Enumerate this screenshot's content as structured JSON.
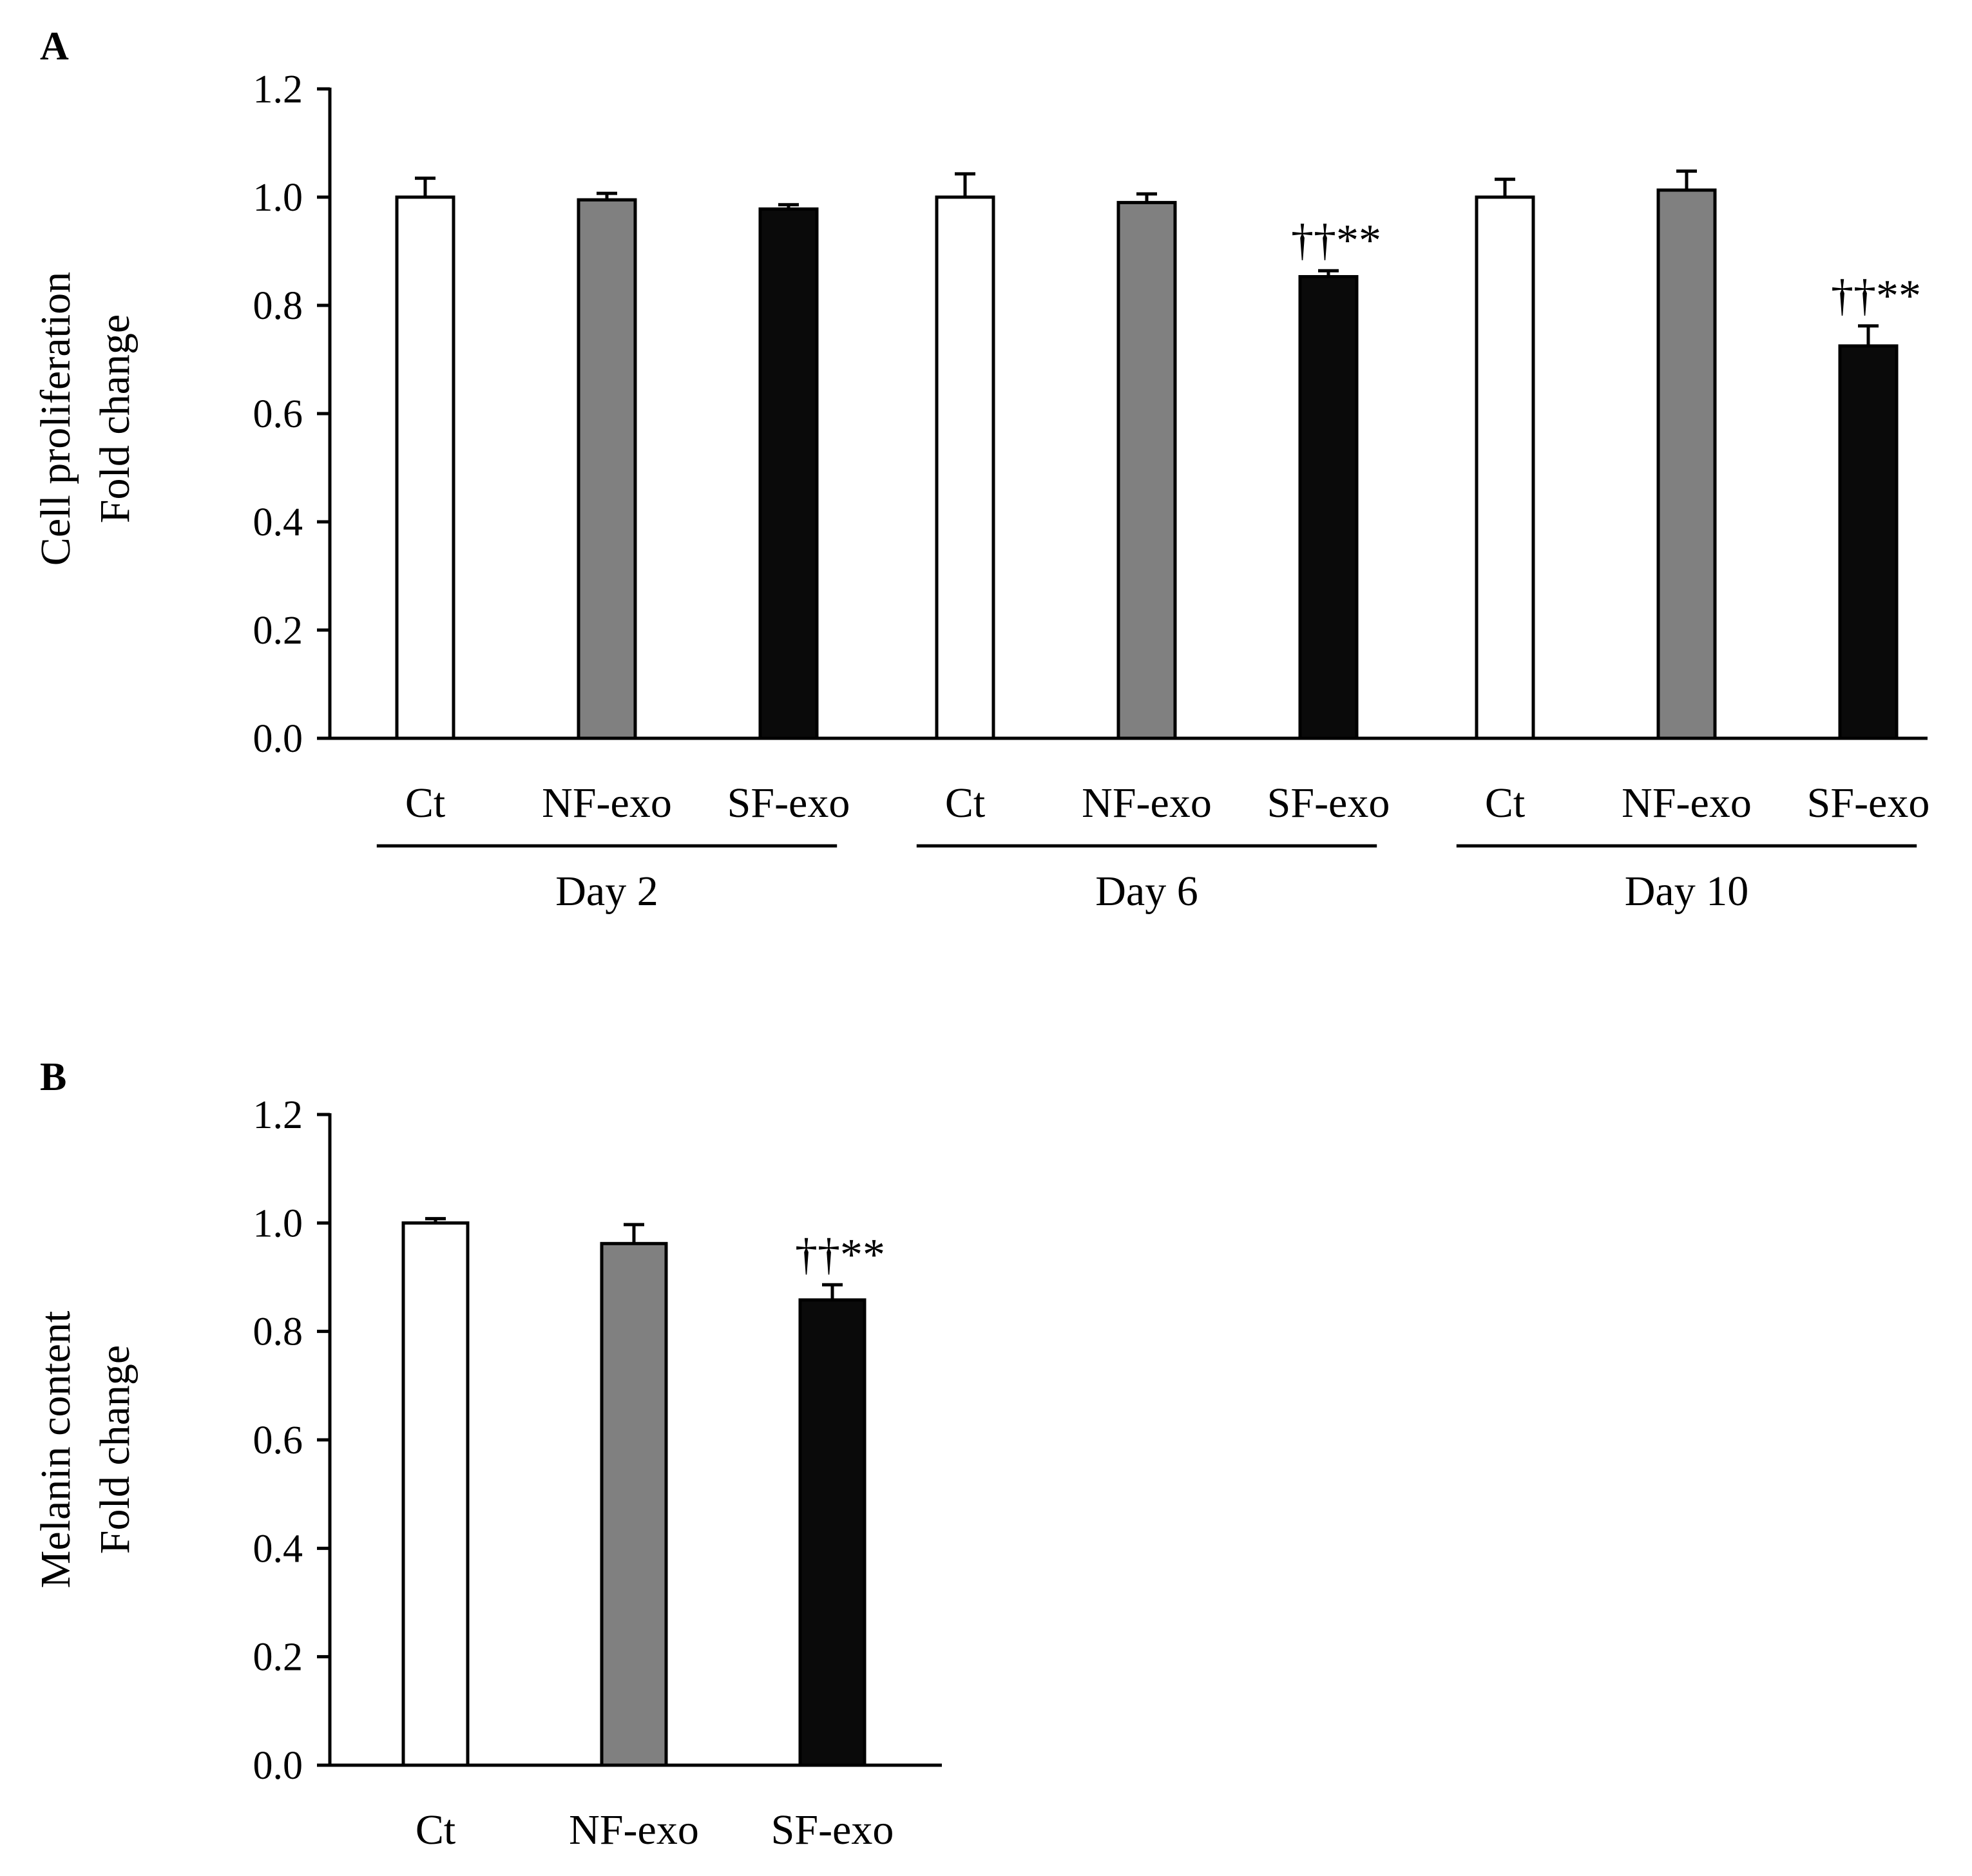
{
  "chart_data": [
    {
      "panel": "A",
      "type": "bar",
      "ylabel": [
        "Cell proliferation",
        "Fold change"
      ],
      "ylim": [
        0,
        1.2
      ],
      "yticks": [
        "0.0",
        "0.2",
        "0.4",
        "0.6",
        "0.8",
        "1.0",
        "1.2"
      ],
      "groups": [
        {
          "label": "Day 2",
          "bars": [
            {
              "category": "Ct",
              "value": 1.0,
              "error": 0.035,
              "color": "#ffffff",
              "annotation": ""
            },
            {
              "category": "NF-exo",
              "value": 0.995,
              "error": 0.012,
              "color": "#808080",
              "annotation": ""
            },
            {
              "category": "SF-exo",
              "value": 0.978,
              "error": 0.008,
              "color": "#0a0a0a",
              "annotation": ""
            }
          ]
        },
        {
          "label": "Day 6",
          "bars": [
            {
              "category": "Ct",
              "value": 1.0,
              "error": 0.043,
              "color": "#ffffff",
              "annotation": ""
            },
            {
              "category": "NF-exo",
              "value": 0.99,
              "error": 0.016,
              "color": "#808080",
              "annotation": ""
            },
            {
              "category": "SF-exo",
              "value": 0.853,
              "error": 0.011,
              "color": "#0a0a0a",
              "annotation": "††**"
            }
          ]
        },
        {
          "label": "Day 10",
          "bars": [
            {
              "category": "Ct",
              "value": 1.0,
              "error": 0.033,
              "color": "#ffffff",
              "annotation": ""
            },
            {
              "category": "NF-exo",
              "value": 1.013,
              "error": 0.035,
              "color": "#808080",
              "annotation": ""
            },
            {
              "category": "SF-exo",
              "value": 0.725,
              "error": 0.037,
              "color": "#0a0a0a",
              "annotation": "††**"
            }
          ]
        }
      ]
    },
    {
      "panel": "B",
      "type": "bar",
      "ylabel": [
        "Melanin content",
        "Fold change"
      ],
      "ylim": [
        0,
        1.2
      ],
      "yticks": [
        "0.0",
        "0.2",
        "0.4",
        "0.6",
        "0.8",
        "1.0",
        "1.2"
      ],
      "groups": [
        {
          "label": "",
          "bars": [
            {
              "category": "Ct",
              "value": 1.0,
              "error": 0.008,
              "color": "#ffffff",
              "annotation": ""
            },
            {
              "category": "NF-exo",
              "value": 0.962,
              "error": 0.035,
              "color": "#808080",
              "annotation": ""
            },
            {
              "category": "SF-exo",
              "value": 0.858,
              "error": 0.028,
              "color": "#0a0a0a",
              "annotation": "††**"
            }
          ]
        }
      ]
    }
  ]
}
